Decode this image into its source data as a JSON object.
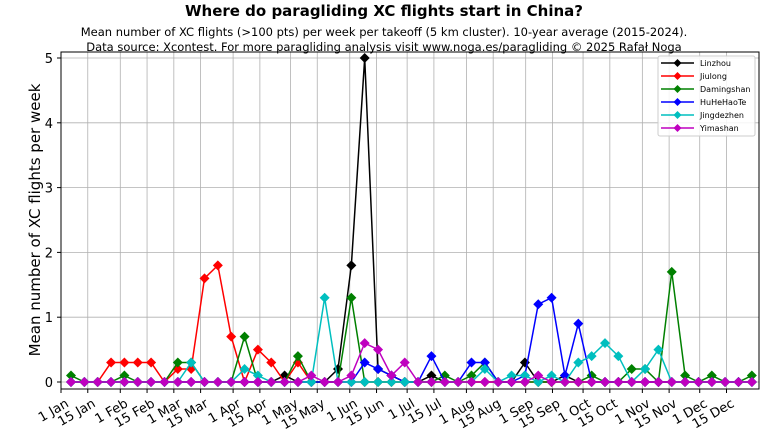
{
  "title": "Where do paragliding XC flights start in China?",
  "subtitle_line1": "Mean number of XC flights (>100 pts) per week per takeoff (5 km cluster). 10-year average (2015-2024).",
  "subtitle_line2": "Data source: Xcontest. For more paragliding analysis visit www.noga.es/paragliding © 2025 Rafał Noga",
  "chart_data": {
    "type": "line",
    "title": "Where do paragliding XC flights start in China?",
    "xlabel": "",
    "ylabel": "Mean number of XC flights per week",
    "ylim": [
      -0.1,
      5.1
    ],
    "grid": true,
    "legend_position": "upper right",
    "x_tick_labels": [
      "1 Jan",
      "15 Jan",
      "1 Feb",
      "15 Feb",
      "1 Mar",
      "15 Mar",
      "1 Apr",
      "15 Apr",
      "1 May",
      "15 May",
      "1 Jun",
      "15 Jun",
      "1 Jul",
      "15 Jul",
      "1 Aug",
      "15 Aug",
      "1 Sep",
      "15 Sep",
      "1 Oct",
      "15 Oct",
      "1 Nov",
      "15 Nov",
      "1 Dec",
      "15 Dec"
    ],
    "x_tick_days": [
      0,
      14,
      31,
      45,
      59,
      73,
      90,
      104,
      120,
      134,
      151,
      165,
      181,
      195,
      212,
      226,
      243,
      257,
      273,
      287,
      304,
      318,
      334,
      348
    ],
    "y_ticks": [
      0,
      1,
      2,
      3,
      4,
      5
    ],
    "x_weeks": [
      1,
      2,
      3,
      4,
      5,
      6,
      7,
      8,
      9,
      10,
      11,
      12,
      13,
      14,
      15,
      16,
      17,
      18,
      19,
      20,
      21,
      22,
      23,
      24,
      25,
      26,
      27,
      28,
      29,
      30,
      31,
      32,
      33,
      34,
      35,
      36,
      37,
      38,
      39,
      40,
      41,
      42,
      43,
      44,
      45,
      46,
      47,
      48,
      49,
      50,
      51,
      52
    ],
    "series": [
      {
        "name": "Linzhou",
        "color": "#000000",
        "values": [
          0,
          0,
          0,
          0,
          0,
          0,
          0,
          0,
          0,
          0,
          0,
          0,
          0,
          0,
          0,
          0,
          0.1,
          0,
          0,
          0,
          0.2,
          1.8,
          5.0,
          0.2,
          0.1,
          0,
          0,
          0.1,
          0,
          0,
          0,
          0,
          0,
          0,
          0.3,
          0,
          0,
          0.1,
          0,
          0,
          0,
          0,
          0,
          0,
          0,
          0,
          0,
          0,
          0,
          0,
          0,
          0
        ]
      },
      {
        "name": "Jiulong",
        "color": "#ff0000",
        "values": [
          0,
          0,
          0,
          0.3,
          0.3,
          0.3,
          0.3,
          0,
          0.2,
          0.2,
          1.6,
          1.8,
          0.7,
          0,
          0.5,
          0.3,
          0,
          0.3,
          0,
          0,
          0,
          0,
          0,
          0,
          0,
          0,
          0,
          0,
          0,
          0,
          0,
          0,
          0,
          0,
          0,
          0,
          0,
          0,
          0,
          0,
          0,
          0,
          0,
          0,
          0,
          0,
          0,
          0,
          0,
          0,
          0,
          0
        ]
      },
      {
        "name": "Damingshan",
        "color": "#008000",
        "values": [
          0.1,
          0,
          0,
          0,
          0.1,
          0,
          0,
          0,
          0.3,
          0.3,
          0,
          0,
          0,
          0.7,
          0,
          0,
          0,
          0.4,
          0,
          0,
          0,
          1.3,
          0,
          0,
          0,
          0,
          0,
          0,
          0.1,
          0,
          0.1,
          0.3,
          0,
          0,
          0,
          0,
          0,
          0,
          0,
          0.1,
          0,
          0,
          0.2,
          0.2,
          0,
          1.7,
          0.1,
          0,
          0.1,
          0,
          0,
          0.1
        ]
      },
      {
        "name": "HuHeHaoTe",
        "color": "#0000ff",
        "values": [
          0,
          0,
          0,
          0,
          0,
          0,
          0,
          0,
          0,
          0,
          0,
          0,
          0,
          0,
          0,
          0,
          0,
          0,
          0,
          0,
          0,
          0,
          0.3,
          0.2,
          0.1,
          0,
          0,
          0.4,
          0,
          0,
          0.3,
          0.3,
          0,
          0,
          0.1,
          1.2,
          1.3,
          0.1,
          0.9,
          0,
          0,
          0,
          0,
          0,
          0,
          0,
          0,
          0,
          0,
          0,
          0,
          0
        ]
      },
      {
        "name": "Jingdezhen",
        "color": "#00bfbf",
        "values": [
          0,
          0,
          0,
          0,
          0,
          0,
          0,
          0,
          0,
          0.3,
          0,
          0,
          0,
          0.2,
          0.1,
          0,
          0,
          0,
          0,
          1.3,
          0,
          0,
          0,
          0,
          0,
          0,
          0,
          0,
          0,
          0,
          0,
          0.2,
          0,
          0.1,
          0.1,
          0,
          0.1,
          0,
          0.3,
          0.4,
          0.6,
          0.4,
          0,
          0.2,
          0.5,
          0,
          0,
          0,
          0,
          0,
          0,
          0
        ]
      },
      {
        "name": "Yimashan",
        "color": "#bf00bf",
        "values": [
          0,
          0,
          0,
          0,
          0,
          0,
          0,
          0,
          0,
          0,
          0,
          0,
          0,
          0,
          0,
          0,
          0,
          0,
          0.1,
          0,
          0,
          0.1,
          0.6,
          0.5,
          0.1,
          0.3,
          0,
          0,
          0,
          0,
          0,
          0,
          0,
          0,
          0,
          0.1,
          0,
          0,
          0,
          0,
          0,
          0,
          0,
          0,
          0,
          0,
          0,
          0,
          0,
          0,
          0,
          0
        ]
      }
    ]
  }
}
